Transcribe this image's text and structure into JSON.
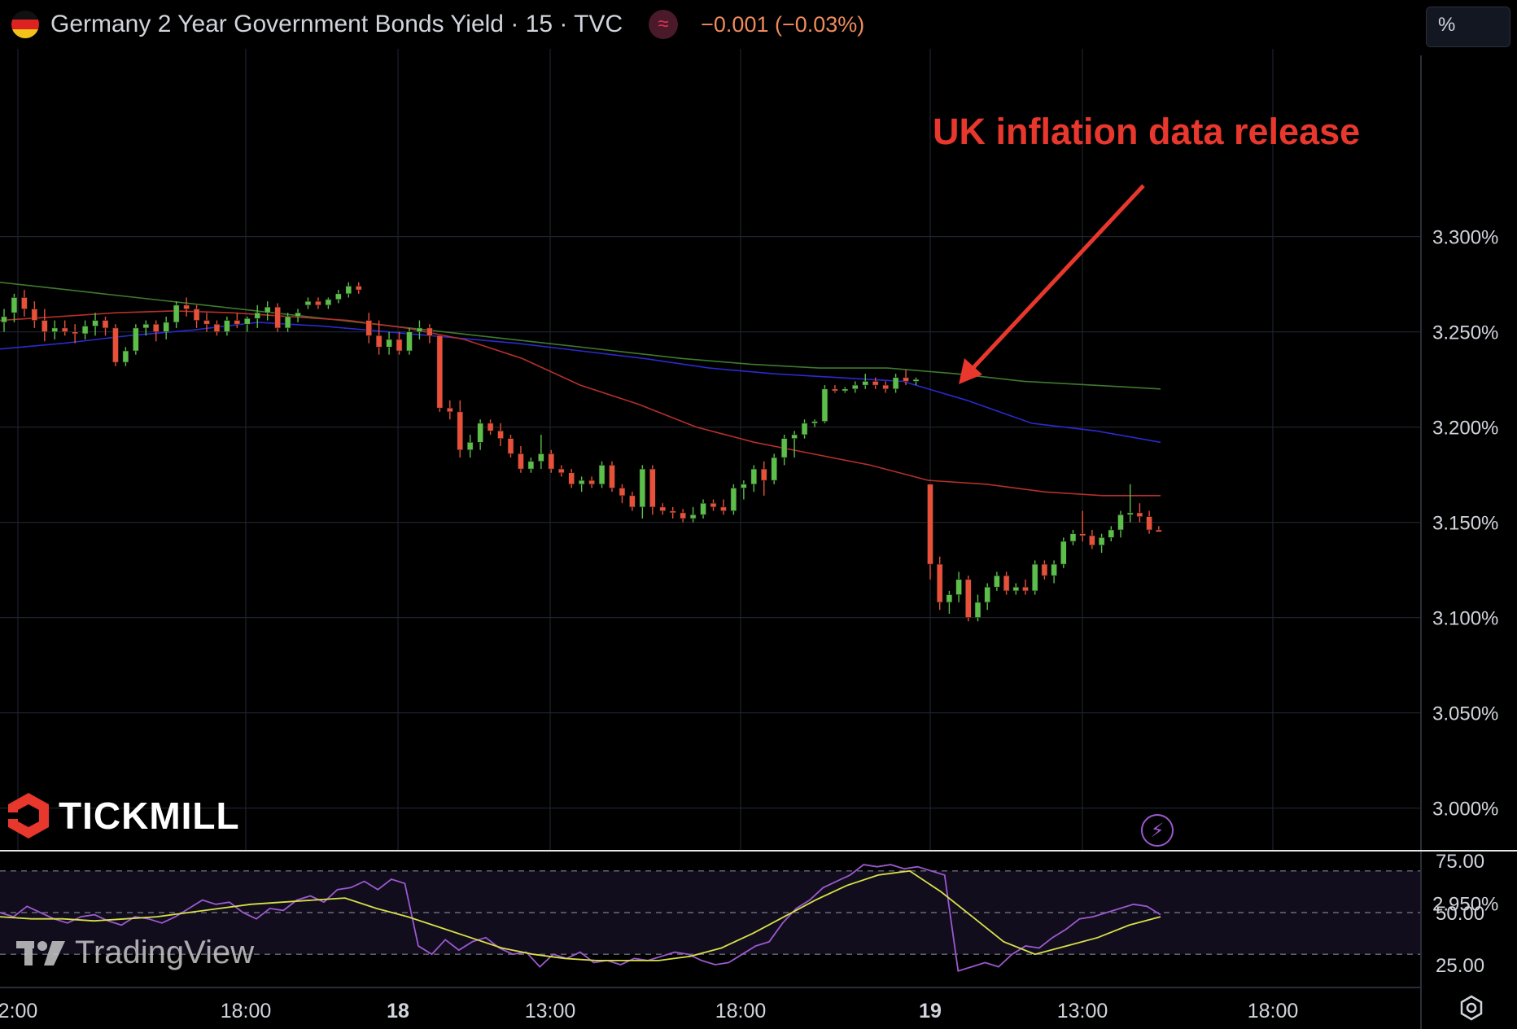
{
  "header": {
    "title": "Germany 2 Year Government Bonds Yield · 15 · TVC",
    "indicator_glyph": "≈",
    "change": "−0.001 (−0.03%)"
  },
  "unit_button": "%",
  "annotation": "UK inflation data release",
  "logos": {
    "tickmill": "TICKMILL",
    "tradingview": "TradingView"
  },
  "icons": {
    "flag": "germany-flag-icon",
    "bolt": "lightning-icon",
    "settings": "settings-icon"
  },
  "colors": {
    "up": "#5bbf4a",
    "down": "#e8503a",
    "ma_red": "#b5302a",
    "ma_blue": "#2a2ad0",
    "ma_green": "#3f7a2f",
    "rsi": "#9b59d0",
    "rsi_ma": "#d8e04a",
    "annotation": "#e8372c"
  },
  "chart_data": {
    "type": "candlestick",
    "x_ticks": [
      "2:00",
      "18:00",
      "18",
      "13:00",
      "18:00",
      "19",
      "13:00",
      "18:00"
    ],
    "y_ticks": [
      "3.300%",
      "3.250%",
      "3.200%",
      "3.150%",
      "3.100%",
      "3.050%",
      "3.000%",
      "2.950%"
    ],
    "ylim": [
      2.93,
      3.345
    ],
    "y_unit": "%",
    "candles": [
      [
        3.255,
        3.262,
        3.25,
        3.258
      ],
      [
        3.26,
        3.27,
        3.255,
        3.268
      ],
      [
        3.268,
        3.272,
        3.258,
        3.262
      ],
      [
        3.262,
        3.266,
        3.252,
        3.256
      ],
      [
        3.256,
        3.262,
        3.245,
        3.25
      ],
      [
        3.25,
        3.256,
        3.246,
        3.252
      ],
      [
        3.252,
        3.256,
        3.248,
        3.25
      ],
      [
        3.25,
        3.254,
        3.244,
        3.249
      ],
      [
        3.249,
        3.256,
        3.246,
        3.253
      ],
      [
        3.253,
        3.26,
        3.248,
        3.256
      ],
      [
        3.256,
        3.258,
        3.248,
        3.252
      ],
      [
        3.252,
        3.254,
        3.232,
        3.234
      ],
      [
        3.234,
        3.242,
        3.232,
        3.24
      ],
      [
        3.24,
        3.254,
        3.238,
        3.252
      ],
      [
        3.252,
        3.256,
        3.248,
        3.254
      ],
      [
        3.254,
        3.256,
        3.245,
        3.25
      ],
      [
        3.25,
        3.258,
        3.246,
        3.255
      ],
      [
        3.255,
        3.266,
        3.252,
        3.264
      ],
      [
        3.264,
        3.268,
        3.258,
        3.262
      ],
      [
        3.262,
        3.264,
        3.252,
        3.256
      ],
      [
        3.256,
        3.26,
        3.25,
        3.254
      ],
      [
        3.254,
        3.256,
        3.248,
        3.25
      ],
      [
        3.25,
        3.258,
        3.248,
        3.256
      ],
      [
        3.256,
        3.26,
        3.252,
        3.254
      ],
      [
        3.254,
        3.258,
        3.25,
        3.257
      ],
      [
        3.257,
        3.264,
        3.252,
        3.26
      ],
      [
        3.26,
        3.266,
        3.256,
        3.263
      ],
      [
        3.263,
        3.265,
        3.25,
        3.252
      ],
      [
        3.252,
        3.26,
        3.25,
        3.258
      ],
      [
        3.258,
        3.262,
        3.255,
        3.26
      ],
      [
        3.264,
        3.268,
        3.262,
        3.266
      ],
      [
        3.266,
        3.268,
        3.262,
        3.264
      ],
      [
        3.264,
        3.268,
        3.262,
        3.267
      ],
      [
        3.267,
        3.272,
        3.265,
        3.27
      ],
      [
        3.27,
        3.276,
        3.268,
        3.274
      ],
      [
        3.274,
        3.276,
        3.27,
        3.272
      ],
      [
        3.256,
        3.26,
        3.244,
        3.248
      ],
      [
        3.248,
        3.256,
        3.238,
        3.242
      ],
      [
        3.242,
        3.25,
        3.238,
        3.246
      ],
      [
        3.246,
        3.25,
        3.238,
        3.24
      ],
      [
        3.24,
        3.252,
        3.238,
        3.25
      ],
      [
        3.25,
        3.256,
        3.246,
        3.252
      ],
      [
        3.252,
        3.254,
        3.244,
        3.248
      ],
      [
        3.248,
        3.248,
        3.208,
        3.21
      ],
      [
        3.21,
        3.214,
        3.204,
        3.208
      ],
      [
        3.208,
        3.214,
        3.184,
        3.188
      ],
      [
        3.188,
        3.196,
        3.184,
        3.192
      ],
      [
        3.192,
        3.204,
        3.188,
        3.202
      ],
      [
        3.202,
        3.204,
        3.196,
        3.198
      ],
      [
        3.198,
        3.202,
        3.19,
        3.194
      ],
      [
        3.194,
        3.196,
        3.184,
        3.186
      ],
      [
        3.186,
        3.19,
        3.176,
        3.178
      ],
      [
        3.178,
        3.184,
        3.176,
        3.182
      ],
      [
        3.182,
        3.196,
        3.178,
        3.186
      ],
      [
        3.186,
        3.188,
        3.176,
        3.178
      ],
      [
        3.178,
        3.18,
        3.174,
        3.176
      ],
      [
        3.176,
        3.178,
        3.168,
        3.17
      ],
      [
        3.17,
        3.174,
        3.166,
        3.172
      ],
      [
        3.172,
        3.174,
        3.168,
        3.17
      ],
      [
        3.17,
        3.182,
        3.168,
        3.18
      ],
      [
        3.18,
        3.182,
        3.166,
        3.168
      ],
      [
        3.168,
        3.17,
        3.16,
        3.164
      ],
      [
        3.164,
        3.166,
        3.156,
        3.158
      ],
      [
        3.158,
        3.18,
        3.152,
        3.178
      ],
      [
        3.178,
        3.18,
        3.154,
        3.158
      ],
      [
        3.158,
        3.16,
        3.154,
        3.156
      ],
      [
        3.156,
        3.158,
        3.152,
        3.155
      ],
      [
        3.155,
        3.157,
        3.15,
        3.152
      ],
      [
        3.152,
        3.158,
        3.15,
        3.154
      ],
      [
        3.154,
        3.162,
        3.152,
        3.16
      ],
      [
        3.16,
        3.162,
        3.156,
        3.158
      ],
      [
        3.158,
        3.162,
        3.154,
        3.156
      ],
      [
        3.156,
        3.17,
        3.154,
        3.168
      ],
      [
        3.168,
        3.172,
        3.162,
        3.17
      ],
      [
        3.17,
        3.18,
        3.166,
        3.178
      ],
      [
        3.178,
        3.182,
        3.164,
        3.172
      ],
      [
        3.172,
        3.186,
        3.17,
        3.184
      ],
      [
        3.184,
        3.196,
        3.18,
        3.194
      ],
      [
        3.194,
        3.198,
        3.184,
        3.196
      ],
      [
        3.196,
        3.204,
        3.194,
        3.202
      ],
      [
        3.202,
        3.204,
        3.2,
        3.203
      ],
      [
        3.203,
        3.222,
        3.202,
        3.22
      ],
      [
        3.22,
        3.222,
        3.218,
        3.219
      ],
      [
        3.219,
        3.221,
        3.218,
        3.22
      ],
      [
        3.22,
        3.224,
        3.218,
        3.222
      ],
      [
        3.222,
        3.228,
        3.22,
        3.224
      ],
      [
        3.224,
        3.226,
        3.22,
        3.222
      ],
      [
        3.222,
        3.224,
        3.218,
        3.22
      ],
      [
        3.22,
        3.228,
        3.218,
        3.226
      ],
      [
        3.226,
        3.23,
        3.222,
        3.224
      ],
      [
        3.224,
        3.226,
        3.222,
        3.225
      ],
      [
        3.17,
        3.17,
        3.12,
        3.128
      ],
      [
        3.128,
        3.132,
        3.104,
        3.108
      ],
      [
        3.108,
        3.114,
        3.102,
        3.112
      ],
      [
        3.112,
        3.124,
        3.108,
        3.12
      ],
      [
        3.12,
        3.122,
        3.098,
        3.1
      ],
      [
        3.1,
        3.112,
        3.098,
        3.108
      ],
      [
        3.108,
        3.118,
        3.104,
        3.116
      ],
      [
        3.116,
        3.124,
        3.114,
        3.122
      ],
      [
        3.122,
        3.124,
        3.112,
        3.114
      ],
      [
        3.114,
        3.118,
        3.112,
        3.116
      ],
      [
        3.116,
        3.12,
        3.112,
        3.114
      ],
      [
        3.114,
        3.13,
        3.112,
        3.128
      ],
      [
        3.128,
        3.13,
        3.12,
        3.122
      ],
      [
        3.122,
        3.13,
        3.118,
        3.128
      ],
      [
        3.128,
        3.142,
        3.126,
        3.14
      ],
      [
        3.14,
        3.146,
        3.138,
        3.144
      ],
      [
        3.144,
        3.156,
        3.14,
        3.143
      ],
      [
        3.143,
        3.146,
        3.136,
        3.138
      ],
      [
        3.138,
        3.144,
        3.134,
        3.142
      ],
      [
        3.142,
        3.148,
        3.14,
        3.146
      ],
      [
        3.146,
        3.156,
        3.142,
        3.154
      ],
      [
        3.154,
        3.17,
        3.15,
        3.155
      ],
      [
        3.155,
        3.16,
        3.15,
        3.153
      ],
      [
        3.153,
        3.156,
        3.144,
        3.146
      ],
      [
        3.146,
        3.148,
        3.145,
        3.145
      ]
    ],
    "ma_red": [
      3.256,
      3.258,
      3.26,
      3.261,
      3.26,
      3.258,
      3.256,
      3.252,
      3.246,
      3.236,
      3.222,
      3.212,
      3.2,
      3.192,
      3.186,
      3.18,
      3.172,
      3.17,
      3.166,
      3.164,
      3.164
    ],
    "ma_blue": [
      3.241,
      3.244,
      3.248,
      3.251,
      3.255,
      3.253,
      3.25,
      3.247,
      3.244,
      3.24,
      3.236,
      3.231,
      3.228,
      3.226,
      3.224,
      3.214,
      3.202,
      3.198,
      3.192
    ],
    "ma_green": [
      3.276,
      3.272,
      3.268,
      3.264,
      3.26,
      3.256,
      3.252,
      3.248,
      3.244,
      3.24,
      3.236,
      3.233,
      3.231,
      3.231,
      3.228,
      3.224,
      3.222,
      3.22
    ],
    "rsi": {
      "y_ticks": [
        "75.00",
        "50.00",
        "25.00"
      ],
      "ylim": [
        18,
        78
      ],
      "bands": [
        70,
        50,
        30
      ],
      "rsi_values": [
        50,
        48,
        53,
        50,
        47,
        45,
        48,
        49,
        46,
        44,
        48,
        47,
        45,
        48,
        52,
        56,
        54,
        55,
        50,
        47,
        52,
        51,
        56,
        58,
        55,
        61,
        62,
        65,
        61,
        66,
        64,
        34,
        30,
        37,
        32,
        36,
        38,
        33,
        30,
        31,
        24,
        30,
        28,
        31,
        26,
        27,
        25,
        28,
        27,
        29,
        31,
        30,
        27,
        25,
        26,
        30,
        34,
        36,
        45,
        52,
        56,
        62,
        65,
        68,
        73,
        72,
        73,
        71,
        72,
        70,
        68,
        22,
        24,
        26,
        24,
        30,
        34,
        33,
        38,
        42,
        47,
        48,
        50,
        52,
        54,
        53,
        49
      ],
      "ma_values": [
        48,
        47,
        47,
        46,
        47,
        48,
        50,
        52,
        54,
        55,
        56,
        57,
        52,
        48,
        43,
        38,
        33,
        30,
        28,
        27,
        27,
        27,
        29,
        33,
        40,
        48,
        56,
        63,
        68,
        70,
        60,
        48,
        36,
        30,
        34,
        38,
        44,
        48
      ]
    }
  }
}
